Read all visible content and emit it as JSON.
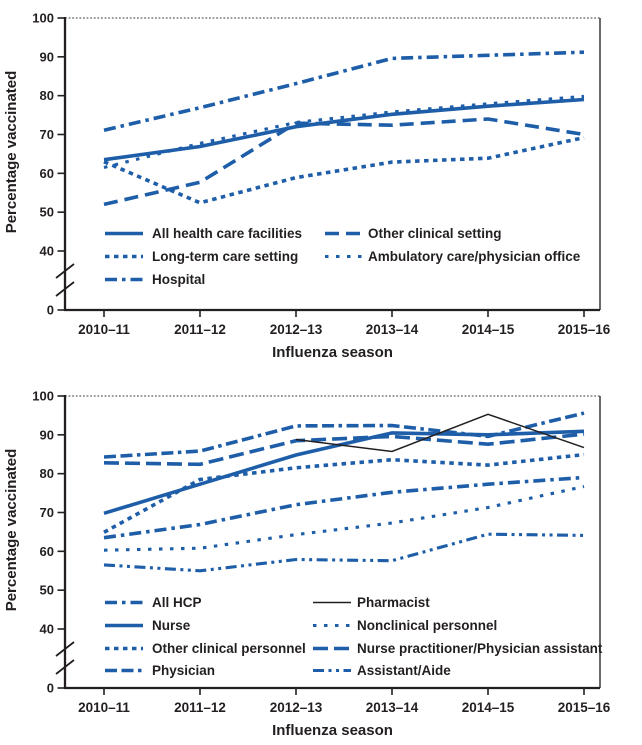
{
  "figure": {
    "description": "Two stacked line charts of influenza vaccination coverage among health care personnel",
    "colors": {
      "line_blue": "#1E5EA9",
      "line_black": "#231F20",
      "axis": "#231F20"
    }
  },
  "chart_data": [
    {
      "type": "line",
      "id": "by-work-setting",
      "title": "",
      "xlabel": "Influenza season",
      "ylabel": "Percentage vaccinated",
      "categories": [
        "2010–11",
        "2011–12",
        "2012–13",
        "2013–14",
        "2014–15",
        "2015–16"
      ],
      "y_ticks": [
        100,
        90,
        80,
        70,
        60,
        50,
        40
      ],
      "y_zero_label": "0",
      "axis_break": true,
      "ylim_shown": [
        40,
        100
      ],
      "grid": false,
      "legend_position": "inside-bottom-left",
      "series": [
        {
          "name": "All health care facilities",
          "style": "solid",
          "color": "#1E5EA9",
          "values": [
            63.5,
            66.9,
            72.0,
            75.2,
            77.3,
            79.0
          ]
        },
        {
          "name": "Long-term care setting",
          "style": "dotted",
          "color": "#1E5EA9",
          "values": [
            63.0,
            52.4,
            58.9,
            62.9,
            63.9,
            69.2
          ]
        },
        {
          "name": "Hospital",
          "style": "dashdot",
          "color": "#1E5EA9",
          "values": [
            71.1,
            76.9,
            83.1,
            89.6,
            90.4,
            91.2
          ]
        },
        {
          "name": "Other clinical setting",
          "style": "dash",
          "color": "#1E5EA9",
          "values": [
            52.0,
            57.7,
            72.9,
            72.4,
            74.0,
            70.0
          ]
        },
        {
          "name": "Ambulatory care/physician office",
          "style": "smalldots",
          "color": "#1E5EA9",
          "values": [
            61.5,
            67.7,
            73.1,
            75.8,
            77.9,
            79.8
          ]
        }
      ],
      "legend_columns": [
        [
          0,
          1,
          2
        ],
        [
          3,
          4
        ]
      ]
    },
    {
      "type": "line",
      "id": "by-occupation",
      "title": "",
      "xlabel": "Influenza season",
      "ylabel": "Percentage vaccinated",
      "categories": [
        "2010–11",
        "2011–12",
        "2012–13",
        "2013–14",
        "2014–15",
        "2015–16"
      ],
      "y_ticks": [
        100,
        90,
        80,
        70,
        60,
        50,
        40
      ],
      "y_zero_label": "0",
      "axis_break": true,
      "ylim_shown": [
        40,
        100
      ],
      "grid": false,
      "legend_position": "inside-bottom-left",
      "series": [
        {
          "name": "All HCP",
          "style": "dashdot",
          "color": "#1E5EA9",
          "values": [
            63.5,
            66.9,
            72.0,
            75.2,
            77.3,
            79.0
          ]
        },
        {
          "name": "Nurse",
          "style": "solid",
          "color": "#1E5EA9",
          "values": [
            69.8,
            77.3,
            84.8,
            90.5,
            90.0,
            90.9
          ]
        },
        {
          "name": "Other clinical personnel",
          "style": "dotted",
          "color": "#1E5EA9",
          "values": [
            64.9,
            78.5,
            81.5,
            83.6,
            82.2,
            84.9
          ]
        },
        {
          "name": "Physician",
          "style": "dashdashdot",
          "color": "#1E5EA9",
          "values": [
            84.3,
            85.8,
            92.3,
            92.4,
            89.6,
            95.6
          ]
        },
        {
          "name": "Pharmacist",
          "style": "thin",
          "color": "#231F20",
          "z": 1,
          "values": [
            null,
            null,
            88.8,
            85.7,
            95.3,
            86.7
          ]
        },
        {
          "name": "Nonclinical personnel",
          "style": "smalldots",
          "color": "#1E5EA9",
          "values": [
            60.3,
            60.8,
            64.3,
            67.3,
            71.3,
            76.7
          ]
        },
        {
          "name": "Nurse practitioner/Physician assistant",
          "style": "longdash",
          "color": "#1E5EA9",
          "values": [
            82.8,
            82.4,
            88.5,
            89.6,
            87.6,
            90.2
          ]
        },
        {
          "name": "Assistant/Aide",
          "style": "dashdotdot",
          "color": "#1E5EA9",
          "values": [
            56.5,
            55.0,
            57.9,
            57.6,
            64.4,
            64.1
          ]
        }
      ],
      "legend_columns": [
        [
          0,
          1,
          2,
          3
        ],
        [
          4,
          5,
          6,
          7
        ]
      ]
    }
  ]
}
